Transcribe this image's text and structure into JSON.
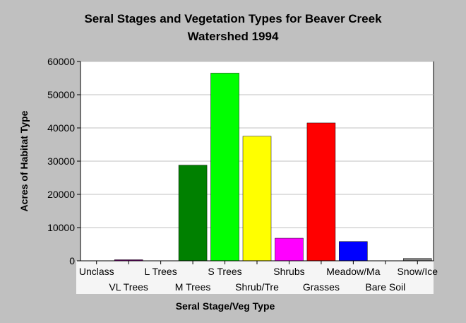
{
  "chart_data": {
    "type": "bar",
    "title_lines": [
      "Seral Stages and Vegetation Types for Beaver Creek",
      "Watershed 1994"
    ],
    "xlabel": "Seral Stage/Veg Type",
    "ylabel": "Acres of Habitat Type",
    "ylim": [
      0,
      60000
    ],
    "yticks": [
      0,
      10000,
      20000,
      30000,
      40000,
      50000,
      60000
    ],
    "grid": true,
    "categories": [
      "Unclass",
      "VL Trees",
      "L Trees",
      "M Trees",
      "S Trees",
      "Shrub/Tre",
      "Shrubs",
      "Grasses",
      "Meadow/Ma",
      "Bare Soil",
      "Snow/Ice"
    ],
    "values": [
      0,
      300,
      0,
      28800,
      56500,
      37500,
      6800,
      41500,
      5800,
      0,
      700
    ],
    "colors": [
      "#c0c0c0",
      "#800080",
      "#c0c0c0",
      "#008000",
      "#00ff00",
      "#ffff00",
      "#ff00ff",
      "#ff0000",
      "#0000ff",
      "#c0c0c0",
      "#808080"
    ]
  }
}
